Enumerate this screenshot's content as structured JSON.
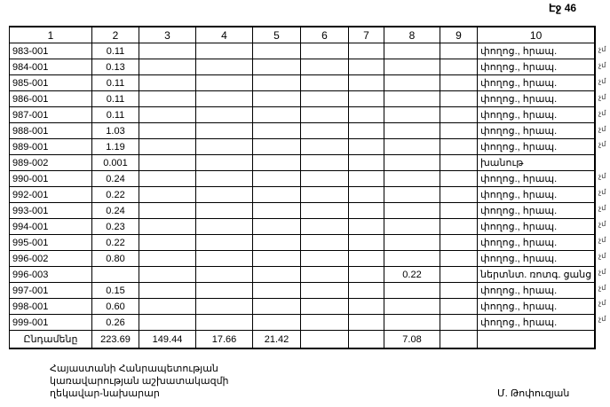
{
  "page_label": "Էջ 46",
  "table": {
    "headers": [
      "1",
      "2",
      "3",
      "4",
      "5",
      "6",
      "7",
      "8",
      "9",
      "10"
    ],
    "rows": [
      {
        "code": "983-001",
        "c2": "0.11",
        "c8": "",
        "c10": "փողոց., հրապ.",
        "mark": "չմ"
      },
      {
        "code": "984-001",
        "c2": "0.13",
        "c8": "",
        "c10": "փողոց., հրապ.",
        "mark": "չմ"
      },
      {
        "code": "985-001",
        "c2": "0.11",
        "c8": "",
        "c10": "փողոց., հրապ.",
        "mark": "չմ"
      },
      {
        "code": "986-001",
        "c2": "0.11",
        "c8": "",
        "c10": "փողոց., հրապ.",
        "mark": "չմ"
      },
      {
        "code": "987-001",
        "c2": "0.11",
        "c8": "",
        "c10": "փողոց., հրապ.",
        "mark": "չմ"
      },
      {
        "code": "988-001",
        "c2": "1.03",
        "c8": "",
        "c10": "փողոց., հրապ.",
        "mark": "չմ"
      },
      {
        "code": "989-001",
        "c2": "1.19",
        "c8": "",
        "c10": "փողոց., հրապ.",
        "mark": "չմ"
      },
      {
        "code": "989-002",
        "c2": "0.001",
        "c8": "",
        "c10": "խանութ",
        "mark": ""
      },
      {
        "code": "990-001",
        "c2": "0.24",
        "c8": "",
        "c10": "փողոց., հրապ.",
        "mark": "չմ"
      },
      {
        "code": "992-001",
        "c2": "0.22",
        "c8": "",
        "c10": "փողոց., հրապ.",
        "mark": "չմ"
      },
      {
        "code": "993-001",
        "c2": "0.24",
        "c8": "",
        "c10": "փողոց., հրապ.",
        "mark": "չմ"
      },
      {
        "code": "994-001",
        "c2": "0.23",
        "c8": "",
        "c10": "փողոց., հրապ.",
        "mark": "չմ"
      },
      {
        "code": "995-001",
        "c2": "0.22",
        "c8": "",
        "c10": "փողոց., հրապ.",
        "mark": "չմ"
      },
      {
        "code": "996-002",
        "c2": "0.80",
        "c8": "",
        "c10": "փողոց., հրապ.",
        "mark": "չմ"
      },
      {
        "code": "996-003",
        "c2": "",
        "c8": "0.22",
        "c10": "ներտնտ. ռոտգ. ցանց",
        "mark": "չմ"
      },
      {
        "code": "997-001",
        "c2": "0.15",
        "c8": "",
        "c10": "փողոց., հրապ.",
        "mark": "չմ"
      },
      {
        "code": "998-001",
        "c2": "0.60",
        "c8": "",
        "c10": "փողոց., հրապ.",
        "mark": "չմ"
      },
      {
        "code": "999-001",
        "c2": "0.26",
        "c8": "",
        "c10": "փողոց., հրապ.",
        "mark": "չմ"
      }
    ],
    "total": {
      "label": "Ընդամենը",
      "c2": "223.69",
      "c3": "149.44",
      "c4": "17.66",
      "c5": "21.42",
      "c8": "7.08"
    }
  },
  "footer": {
    "lines": [
      "Հայաստանի Հանրապետության",
      "կառավարության աշխատակազմի",
      "ղեկավար-նախարար"
    ],
    "signatory": "Մ. Թոփուզյան"
  }
}
